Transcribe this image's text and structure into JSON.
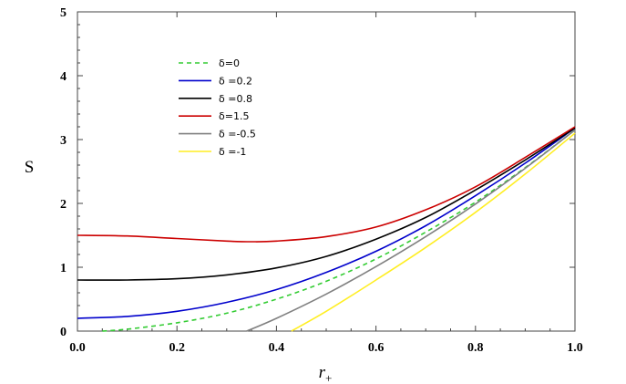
{
  "chart_data": {
    "type": "line",
    "title": "",
    "xlabel": "r",
    "xlabel_subscript": "+",
    "ylabel": "S",
    "xlim": [
      0,
      1.0
    ],
    "ylim": [
      0,
      5
    ],
    "x_ticks": [
      "0.0",
      "0.2",
      "0.4",
      "0.6",
      "0.8",
      "1.0"
    ],
    "y_ticks": [
      "0",
      "1",
      "2",
      "3",
      "4",
      "5"
    ],
    "x_tick_values": [
      0,
      0.2,
      0.4,
      0.6,
      0.8,
      1.0
    ],
    "y_tick_values": [
      0,
      1,
      2,
      3,
      4,
      5
    ],
    "grid": false,
    "legend_position": "upper-left",
    "series": [
      {
        "name": "δ=0",
        "color": "#33cc33",
        "dashed": true,
        "x": [
          0.05,
          0.1,
          0.2,
          0.3,
          0.4,
          0.5,
          0.6,
          0.7,
          0.8,
          0.9,
          1.0
        ],
        "y": [
          0.0,
          0.03,
          0.13,
          0.28,
          0.5,
          0.78,
          1.13,
          1.55,
          2.02,
          2.56,
          3.15
        ]
      },
      {
        "name": "δ =0.2",
        "color": "#0000cc",
        "dashed": false,
        "x": [
          0.0,
          0.1,
          0.2,
          0.3,
          0.4,
          0.5,
          0.6,
          0.7,
          0.8,
          0.9,
          1.0
        ],
        "y": [
          0.2,
          0.23,
          0.31,
          0.45,
          0.65,
          0.92,
          1.25,
          1.65,
          2.12,
          2.63,
          3.18
        ]
      },
      {
        "name": "δ =0.8",
        "color": "#000000",
        "dashed": false,
        "x": [
          0.0,
          0.1,
          0.2,
          0.3,
          0.4,
          0.5,
          0.6,
          0.7,
          0.8,
          0.9,
          1.0
        ],
        "y": [
          0.8,
          0.8,
          0.82,
          0.88,
          0.99,
          1.17,
          1.44,
          1.78,
          2.21,
          2.68,
          3.18
        ]
      },
      {
        "name": "δ=1.5",
        "color": "#cc0000",
        "dashed": false,
        "x": [
          0.0,
          0.1,
          0.2,
          0.3,
          0.35,
          0.4,
          0.5,
          0.6,
          0.7,
          0.8,
          0.9,
          1.0
        ],
        "y": [
          1.5,
          1.49,
          1.45,
          1.41,
          1.4,
          1.41,
          1.48,
          1.63,
          1.9,
          2.26,
          2.72,
          3.2
        ]
      },
      {
        "name": "δ =-0.5",
        "color": "#808080",
        "dashed": false,
        "x": [
          0.34,
          0.4,
          0.5,
          0.6,
          0.7,
          0.8,
          0.9,
          1.0
        ],
        "y": [
          0.0,
          0.2,
          0.58,
          1.01,
          1.48,
          1.99,
          2.55,
          3.15
        ]
      },
      {
        "name": "δ =-1",
        "color": "#ffee22",
        "dashed": false,
        "x": [
          0.43,
          0.5,
          0.6,
          0.7,
          0.8,
          0.9,
          1.0
        ],
        "y": [
          0.0,
          0.31,
          0.8,
          1.31,
          1.86,
          2.46,
          3.1
        ]
      }
    ]
  }
}
